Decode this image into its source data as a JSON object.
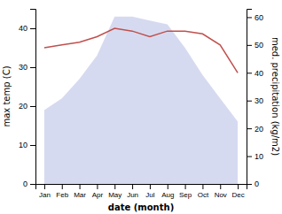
{
  "chart_data": {
    "type": "line",
    "categories": [
      "Jan",
      "Feb",
      "Mar",
      "Apr",
      "May",
      "Jun",
      "Jul",
      "Aug",
      "Sep",
      "Oct",
      "Nov",
      "Dec"
    ],
    "xlabel": "date (month)",
    "ylabel": "max temp (C)",
    "y2label": "med. precipitation (kg/m2)",
    "series": [
      {
        "type": "area",
        "color": "#c5cae9",
        "values": [
          19,
          22,
          27,
          33,
          43,
          43,
          42,
          41,
          35,
          28,
          22,
          16
        ]
      },
      {
        "type": "line",
        "color": "#c0504d",
        "axis": "y2",
        "values": [
          49,
          50,
          51,
          53,
          56,
          55,
          53,
          55,
          55,
          54,
          50,
          40
        ]
      }
    ],
    "ylim": [
      0,
      45
    ],
    "yticks": [
      0,
      10,
      20,
      30,
      40
    ],
    "y2lim": [
      0,
      63
    ],
    "y2ticks": [
      0,
      10,
      20,
      30,
      40,
      50,
      60
    ]
  }
}
